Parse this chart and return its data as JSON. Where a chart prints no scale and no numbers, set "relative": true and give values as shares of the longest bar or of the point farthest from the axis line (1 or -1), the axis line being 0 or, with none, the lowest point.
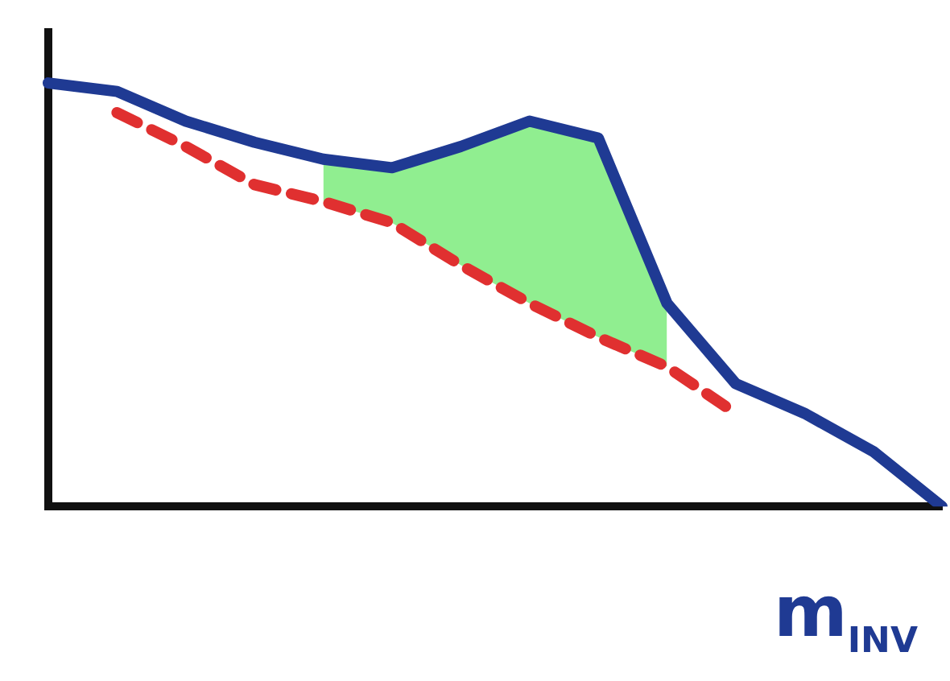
{
  "chart_data": {
    "type": "line",
    "relative": true,
    "xlabel": "m$_{INV}$",
    "categories": [
      null,
      null,
      null,
      null,
      null,
      null,
      null,
      null,
      null,
      null,
      null,
      null,
      null,
      null
    ],
    "grid": false,
    "legend": false,
    "marker": "none",
    "series": [
      {
        "color": "#e03030",
        "line_style": "dashed",
        "values": [
          null,
          0.93,
          0.85,
          0.76,
          0.72,
          0.67,
          0.57,
          0.48,
          0.4,
          0.33,
          0.22,
          null,
          null,
          null
        ]
      },
      {
        "type": "area",
        "color": "#90ee90",
        "values": [
          null,
          null,
          null,
          null,
          0.82,
          0.8,
          0.85,
          0.91,
          0.87,
          0.48,
          null,
          null,
          null,
          null
        ]
      },
      {
        "color": "#1f3a93",
        "line_style": "solid",
        "values": [
          1,
          0.98,
          0.91,
          0.86,
          0.82,
          0.8,
          0.85,
          0.91,
          0.87,
          0.48,
          0.29,
          0.22,
          0.13,
          0
        ]
      }
    ]
  }
}
